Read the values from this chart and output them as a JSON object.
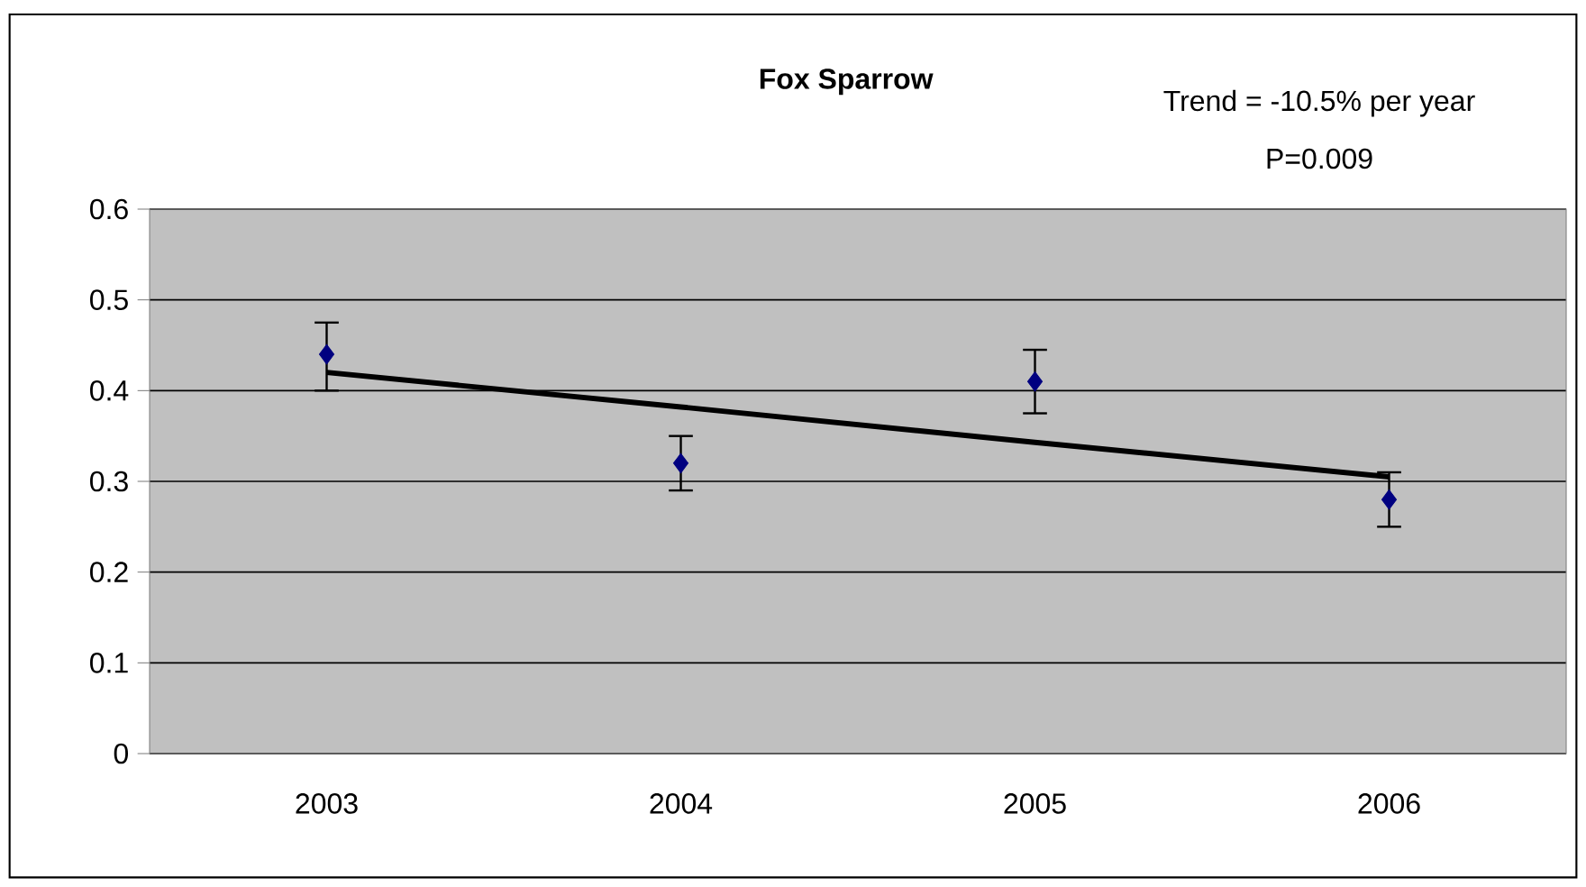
{
  "chart_data": {
    "type": "scatter",
    "title": "Fox Sparrow",
    "annotations": [
      "Trend = -10.5% per year",
      "P=0.009"
    ],
    "categories": [
      "2003",
      "2004",
      "2005",
      "2006"
    ],
    "series": [
      {
        "color": "#000080",
        "marker": "diamond",
        "values": [
          0.44,
          0.32,
          0.41,
          0.28
        ],
        "errors": [
          [
            0.4,
            0.475
          ],
          [
            0.29,
            0.35
          ],
          [
            0.375,
            0.445
          ],
          [
            0.25,
            0.31
          ]
        ]
      },
      {
        "type": "line",
        "color": "#000000",
        "marker": "none",
        "line_style": "solid",
        "values": [
          0.42,
          0.382,
          0.343,
          0.305
        ]
      }
    ],
    "ylim": [
      0,
      0.6
    ],
    "yticks": [
      0,
      0.1,
      0.2,
      0.3,
      0.4,
      0.5,
      0.6
    ],
    "grid": "y"
  }
}
